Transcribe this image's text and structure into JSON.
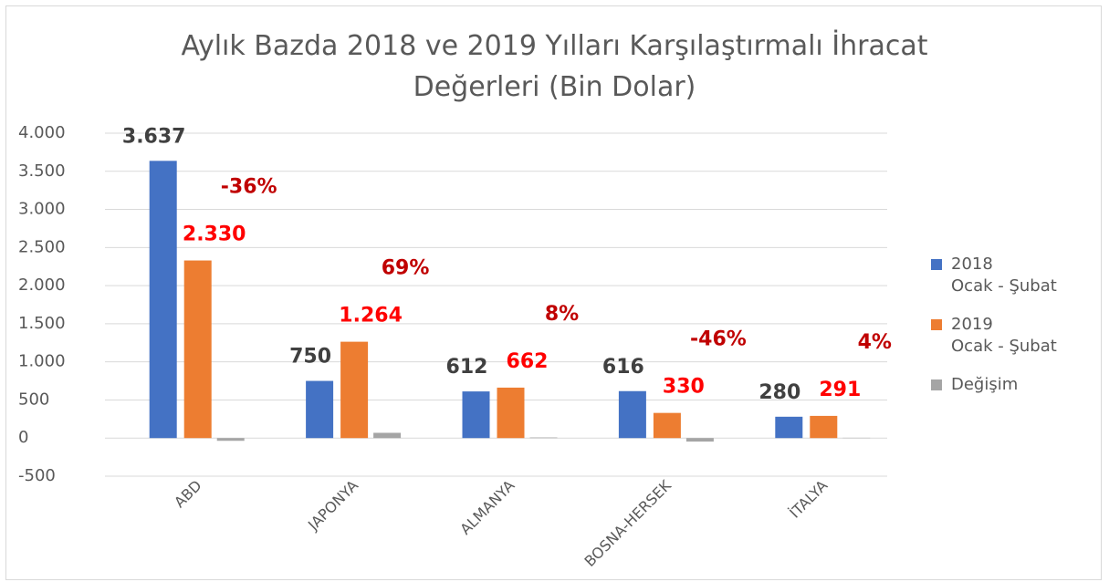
{
  "chart_data": {
    "type": "bar",
    "title": "Aylık Bazda 2018 ve 2019 Yılları Karşılaştırmalı İhracat\nDeğerleri (Bin Dolar)",
    "categories": [
      "ABD",
      "JAPONYA",
      "ALMANYA",
      "BOSNA-HERSEK",
      "İTALYA"
    ],
    "series": [
      {
        "name": "2018\nOcak - Şubat",
        "color": "#4472c4",
        "values": [
          3637,
          750,
          612,
          616,
          280
        ],
        "value_labels": [
          "3.637",
          "750",
          "612",
          "616",
          "280"
        ]
      },
      {
        "name": "2019\nOcak - Şubat",
        "color": "#ed7d31",
        "values": [
          2330,
          1264,
          662,
          330,
          291
        ],
        "value_labels": [
          "2.330",
          "1.264",
          "662",
          "330",
          "291"
        ]
      },
      {
        "name": "Değişim",
        "color": "#a5a5a5",
        "values": [
          -36,
          69,
          8,
          -46,
          4
        ],
        "value_labels": [
          "-36%",
          "69%",
          "8%",
          "-46%",
          "4%"
        ]
      }
    ],
    "ylim": [
      -500,
      4000
    ],
    "yticks": [
      -500,
      0,
      500,
      {
        "value": 1000,
        "label": "1.000"
      },
      {
        "value": 1500,
        "label": "1.500"
      },
      {
        "value": 2000,
        "label": "2.000"
      },
      {
        "value": 2500,
        "label": "2.500"
      },
      {
        "value": 3000,
        "label": "3.000"
      },
      {
        "value": 3500,
        "label": "3.500"
      },
      {
        "value": 4000,
        "label": "4.000"
      }
    ],
    "grid": true,
    "legend": "right"
  }
}
